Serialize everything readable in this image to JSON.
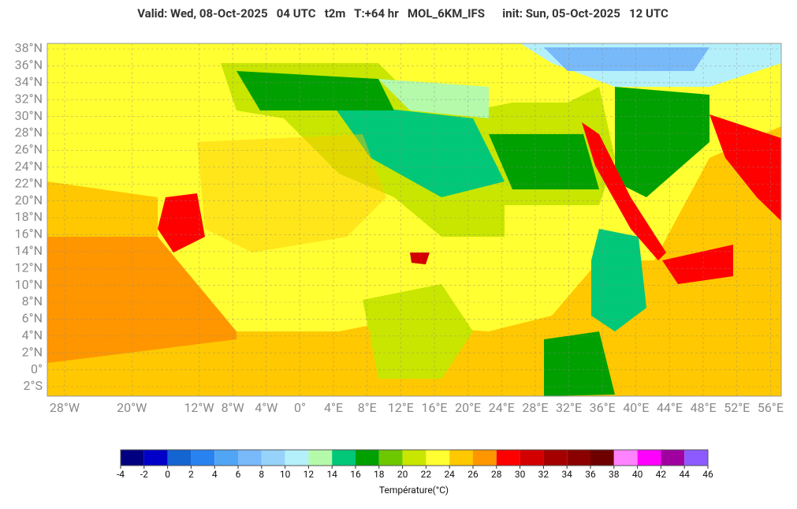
{
  "header": {
    "title": "Valid: Wed, 08-Oct-2025   04 UTC   t2m   T:+64 hr   MOL_6KM_IFS      init: Sun, 05-Oct-2025   12 UTC"
  },
  "map": {
    "lat_ticks": [
      {
        "value": 38,
        "label": "38°N"
      },
      {
        "value": 36,
        "label": "36°N"
      },
      {
        "value": 34,
        "label": "34°N"
      },
      {
        "value": 32,
        "label": "32°N"
      },
      {
        "value": 30,
        "label": "30°N"
      },
      {
        "value": 28,
        "label": "28°N"
      },
      {
        "value": 26,
        "label": "26°N"
      },
      {
        "value": 24,
        "label": "24°N"
      },
      {
        "value": 22,
        "label": "22°N"
      },
      {
        "value": 20,
        "label": "20°N"
      },
      {
        "value": 18,
        "label": "18°N"
      },
      {
        "value": 16,
        "label": "16°N"
      },
      {
        "value": 14,
        "label": "14°N"
      },
      {
        "value": 12,
        "label": "12°N"
      },
      {
        "value": 10,
        "label": "10°N"
      },
      {
        "value": 8,
        "label": "8°N"
      },
      {
        "value": 6,
        "label": "6°N"
      },
      {
        "value": 4,
        "label": "4°N"
      },
      {
        "value": 2,
        "label": "2°N"
      },
      {
        "value": 0,
        "label": "0°"
      },
      {
        "value": -2,
        "label": "2°S"
      }
    ],
    "lon_ticks": [
      {
        "value": -28,
        "label": "28°W"
      },
      {
        "value": -20,
        "label": "20°W"
      },
      {
        "value": -12,
        "label": "12°W"
      },
      {
        "value": -8,
        "label": "8°W"
      },
      {
        "value": -4,
        "label": "4°W"
      },
      {
        "value": 0,
        "label": "0°"
      },
      {
        "value": 4,
        "label": "4°E"
      },
      {
        "value": 8,
        "label": "8°E"
      },
      {
        "value": 12,
        "label": "12°E"
      },
      {
        "value": 16,
        "label": "16°E"
      },
      {
        "value": 20,
        "label": "20°E"
      },
      {
        "value": 24,
        "label": "24°E"
      },
      {
        "value": 28,
        "label": "28°E"
      },
      {
        "value": 32,
        "label": "32°E"
      },
      {
        "value": 36,
        "label": "36°E"
      },
      {
        "value": 40,
        "label": "40°E"
      },
      {
        "value": 44,
        "label": "44°E"
      },
      {
        "value": 48,
        "label": "48°E"
      },
      {
        "value": 52,
        "label": "52°E"
      },
      {
        "value": 56,
        "label": "56°E"
      }
    ]
  },
  "colorbar": {
    "label": "Température(°C)",
    "ticks": [
      -4,
      -2,
      0,
      2,
      4,
      6,
      8,
      10,
      12,
      14,
      16,
      18,
      20,
      22,
      24,
      26,
      28,
      30,
      32,
      34,
      36,
      38,
      40,
      42,
      44,
      46
    ],
    "colors": [
      "#000080",
      "#0000c8",
      "#1464d2",
      "#2882f0",
      "#50a5f5",
      "#78b9fa",
      "#96d2fa",
      "#b4f0fa",
      "#b4faaa",
      "#00c878",
      "#00a000",
      "#6ec800",
      "#c8e600",
      "#ffff32",
      "#ffc800",
      "#ff9600",
      "#ff0000",
      "#d20000",
      "#a50000",
      "#8b0000",
      "#6e0000",
      "#ff82ff",
      "#ff00ff",
      "#a000a0",
      "#8c5aff"
    ]
  }
}
